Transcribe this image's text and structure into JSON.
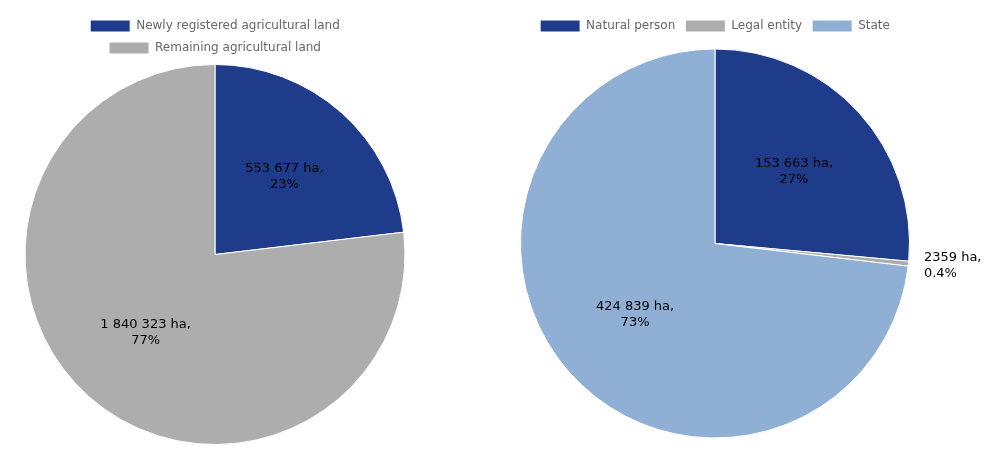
{
  "chart_data": [
    {
      "type": "pie",
      "categories": [
        "Newly registered agricultural land",
        "Remaining agricultural land"
      ],
      "values": [
        553677,
        1840323
      ],
      "value_labels": [
        "553 677 ha,\n23%",
        "1 840 323 ha,\n77%"
      ],
      "colors": [
        "#1f3c8a",
        "#adadad"
      ],
      "legend": "top",
      "data_labels": true
    },
    {
      "type": "pie",
      "categories": [
        "Natural person",
        "Legal entity",
        "State"
      ],
      "values": [
        153663,
        2359,
        424839
      ],
      "value_labels": [
        "153 663 ha,\n27%",
        "2359 ha,\n0.4%",
        "424 839 ha,\n73%"
      ],
      "colors": [
        "#1f3c8a",
        "#adadad",
        "#8fafd4"
      ],
      "legend": "top",
      "data_labels": true
    }
  ]
}
